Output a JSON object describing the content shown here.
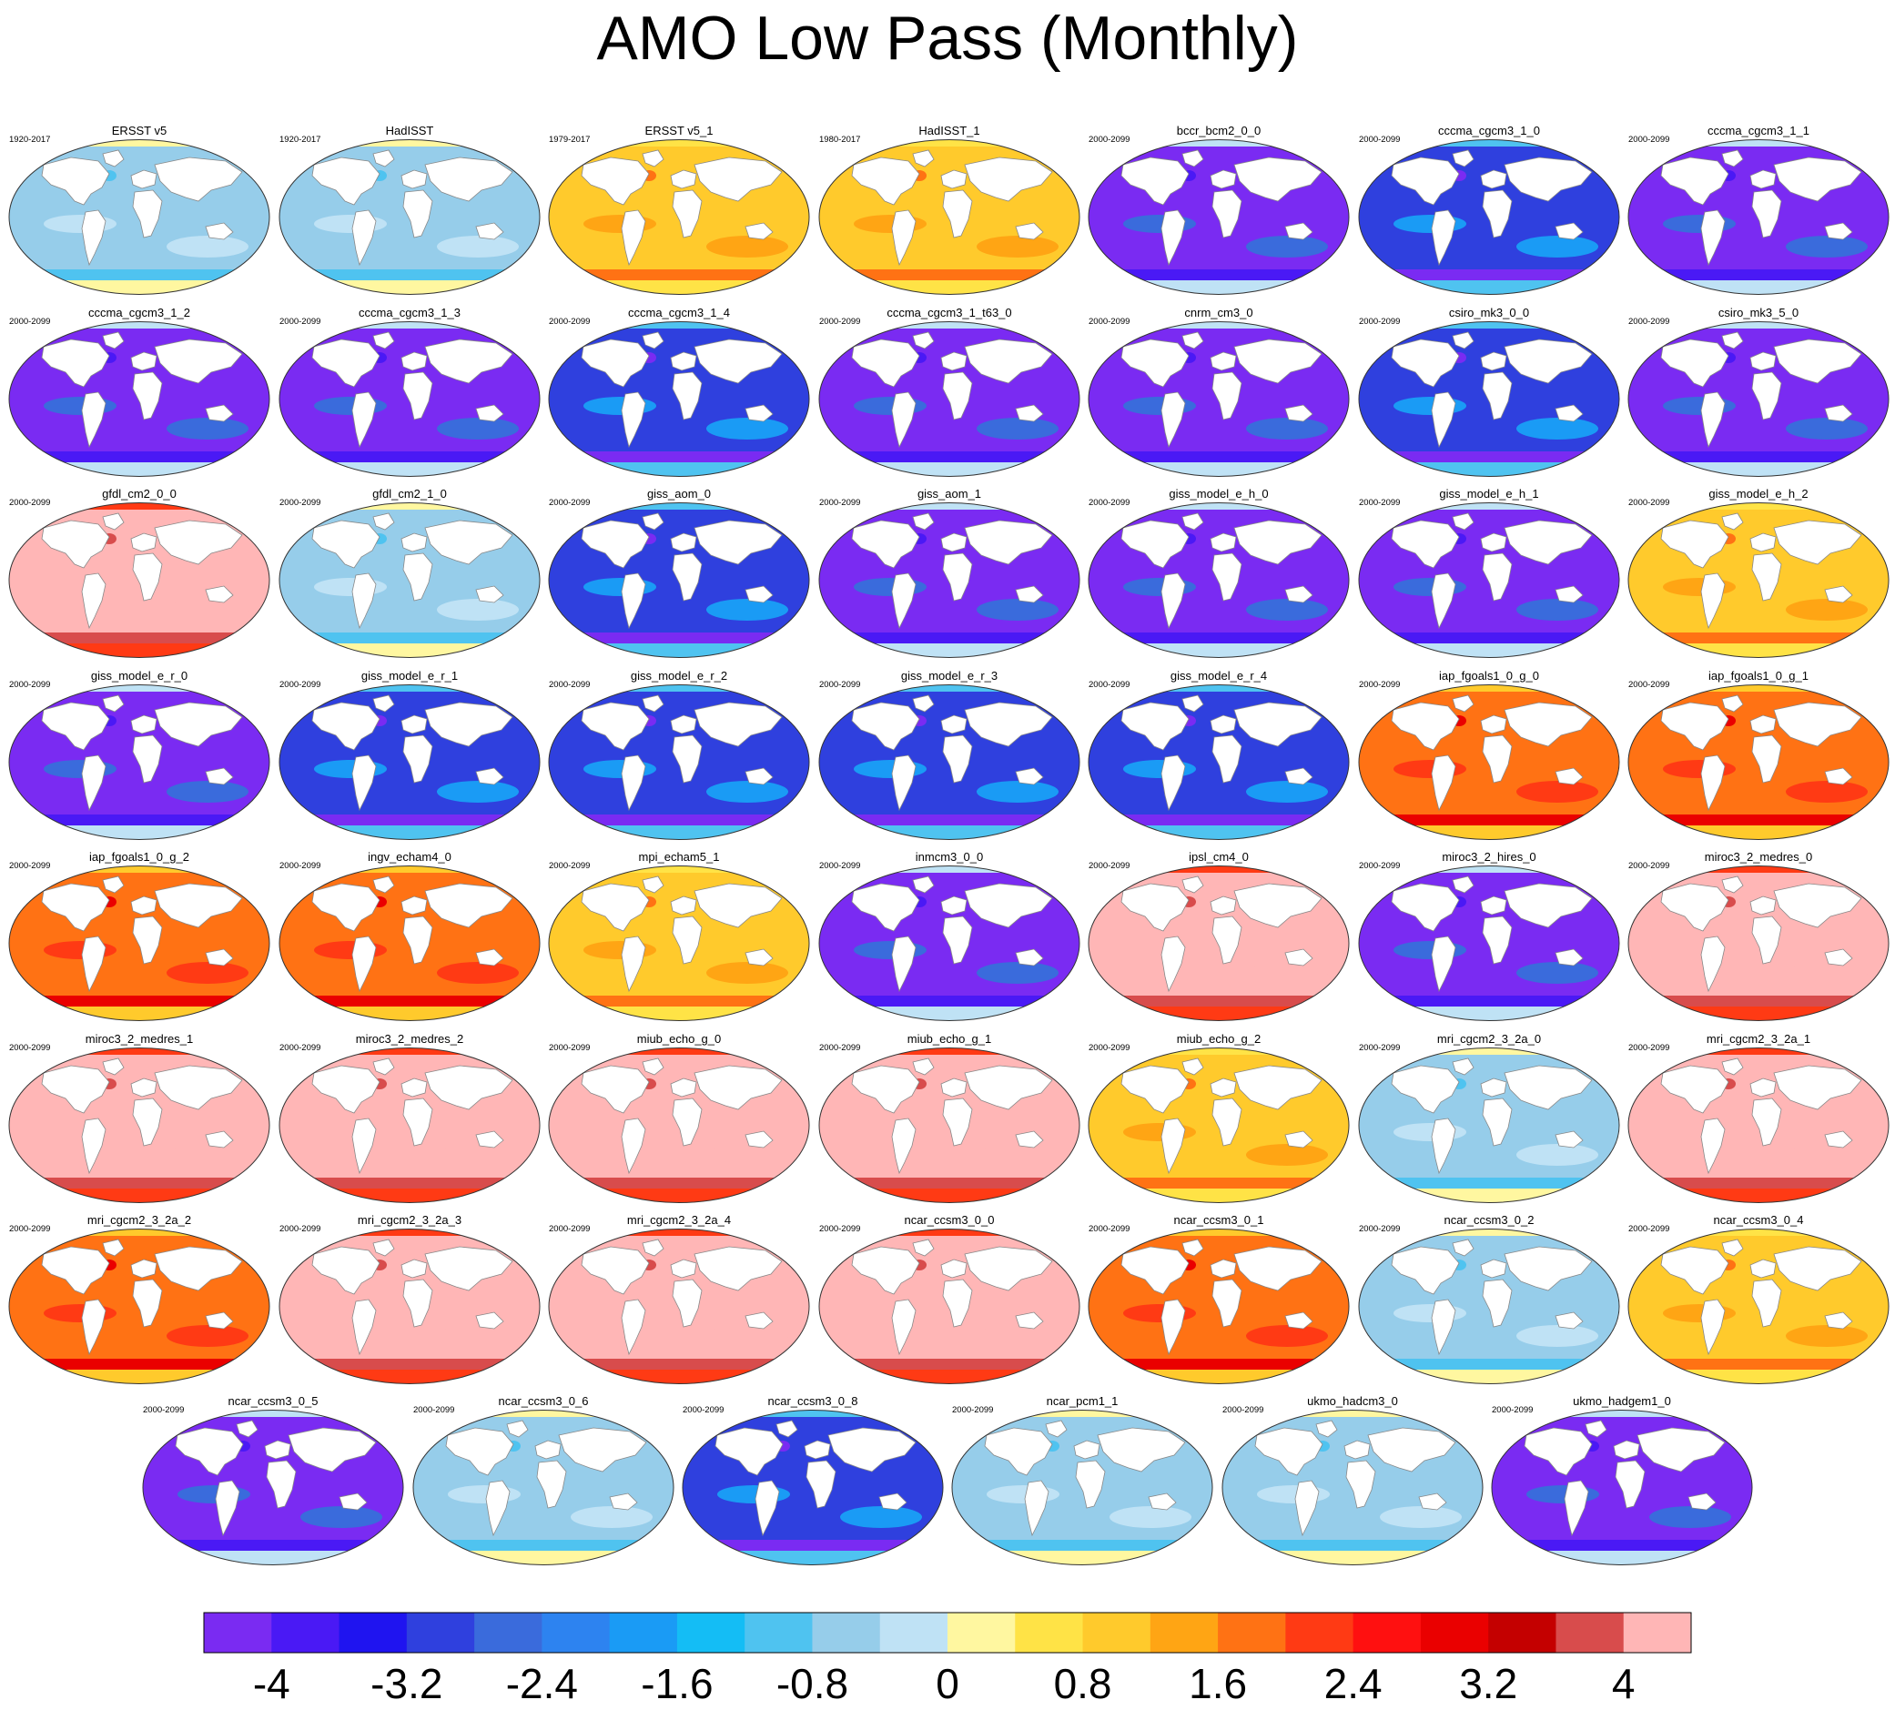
{
  "title": "AMO Low Pass (Monthly)",
  "colorbar": {
    "colors": [
      "#7a2bf2",
      "#4a19f5",
      "#1f14f0",
      "#2f40de",
      "#3a6bdc",
      "#2d83f0",
      "#1a9bf5",
      "#14bdf5",
      "#4fc3f0",
      "#96cdea",
      "#bfe2f5",
      "#fff7a0",
      "#ffe346",
      "#ffca2c",
      "#ffa514",
      "#ff7214",
      "#ff3a14",
      "#ff1010",
      "#ea0000",
      "#c40000",
      "#d84c4c",
      "#ffb6b6"
    ],
    "tick_labels": [
      "-4",
      "-3.2",
      "-2.4",
      "-1.6",
      "-0.8",
      "0",
      "0.8",
      "1.6",
      "2.4",
      "3.2",
      "4"
    ]
  },
  "panels": [
    {
      "name": "ERSST v5",
      "period": "1920-2017",
      "theme": "light"
    },
    {
      "name": "HadISST",
      "period": "1920-2017",
      "theme": "light"
    },
    {
      "name": "ERSST v5_1",
      "period": "1979-2017",
      "theme": "warm"
    },
    {
      "name": "HadISST_1",
      "period": "1980-2017",
      "theme": "warm"
    },
    {
      "name": "bccr_bcm2_0_0",
      "period": "2000-2099",
      "theme": "violet"
    },
    {
      "name": "cccma_cgcm3_1_0",
      "period": "2000-2099",
      "theme": "blue"
    },
    {
      "name": "cccma_cgcm3_1_1",
      "period": "2000-2099",
      "theme": "violet"
    },
    {
      "name": "cccma_cgcm3_1_2",
      "period": "2000-2099",
      "theme": "violet"
    },
    {
      "name": "cccma_cgcm3_1_3",
      "period": "2000-2099",
      "theme": "violet"
    },
    {
      "name": "cccma_cgcm3_1_4",
      "period": "2000-2099",
      "theme": "blue"
    },
    {
      "name": "cccma_cgcm3_1_t63_0",
      "period": "2000-2099",
      "theme": "violet"
    },
    {
      "name": "cnrm_cm3_0",
      "period": "2000-2099",
      "theme": "violet"
    },
    {
      "name": "csiro_mk3_0_0",
      "period": "2000-2099",
      "theme": "blue"
    },
    {
      "name": "csiro_mk3_5_0",
      "period": "2000-2099",
      "theme": "violet"
    },
    {
      "name": "gfdl_cm2_0_0",
      "period": "2000-2099",
      "theme": "pink"
    },
    {
      "name": "gfdl_cm2_1_0",
      "period": "2000-2099",
      "theme": "light"
    },
    {
      "name": "giss_aom_0",
      "period": "2000-2099",
      "theme": "blue"
    },
    {
      "name": "giss_aom_1",
      "period": "2000-2099",
      "theme": "violet"
    },
    {
      "name": "giss_model_e_h_0",
      "period": "2000-2099",
      "theme": "violet"
    },
    {
      "name": "giss_model_e_h_1",
      "period": "2000-2099",
      "theme": "violet"
    },
    {
      "name": "giss_model_e_h_2",
      "period": "2000-2099",
      "theme": "warm"
    },
    {
      "name": "giss_model_e_r_0",
      "period": "2000-2099",
      "theme": "violet"
    },
    {
      "name": "giss_model_e_r_1",
      "period": "2000-2099",
      "theme": "blue"
    },
    {
      "name": "giss_model_e_r_2",
      "period": "2000-2099",
      "theme": "blue"
    },
    {
      "name": "giss_model_e_r_3",
      "period": "2000-2099",
      "theme": "blue"
    },
    {
      "name": "giss_model_e_r_4",
      "period": "2000-2099",
      "theme": "blue"
    },
    {
      "name": "iap_fgoals1_0_g_0",
      "period": "2000-2099",
      "theme": "hot"
    },
    {
      "name": "iap_fgoals1_0_g_1",
      "period": "2000-2099",
      "theme": "hot"
    },
    {
      "name": "iap_fgoals1_0_g_2",
      "period": "2000-2099",
      "theme": "hot"
    },
    {
      "name": "ingv_echam4_0",
      "period": "2000-2099",
      "theme": "hot"
    },
    {
      "name": "mpi_echam5_1",
      "period": "2000-2099",
      "theme": "warm"
    },
    {
      "name": "inmcm3_0_0",
      "period": "2000-2099",
      "theme": "violet"
    },
    {
      "name": "ipsl_cm4_0",
      "period": "2000-2099",
      "theme": "pink"
    },
    {
      "name": "miroc3_2_hires_0",
      "period": "2000-2099",
      "theme": "violet"
    },
    {
      "name": "miroc3_2_medres_0",
      "period": "2000-2099",
      "theme": "pink"
    },
    {
      "name": "miroc3_2_medres_1",
      "period": "2000-2099",
      "theme": "pink"
    },
    {
      "name": "miroc3_2_medres_2",
      "period": "2000-2099",
      "theme": "pink"
    },
    {
      "name": "miub_echo_g_0",
      "period": "2000-2099",
      "theme": "pink"
    },
    {
      "name": "miub_echo_g_1",
      "period": "2000-2099",
      "theme": "pink"
    },
    {
      "name": "miub_echo_g_2",
      "period": "2000-2099",
      "theme": "warm"
    },
    {
      "name": "mri_cgcm2_3_2a_0",
      "period": "2000-2099",
      "theme": "light"
    },
    {
      "name": "mri_cgcm2_3_2a_1",
      "period": "2000-2099",
      "theme": "pink"
    },
    {
      "name": "mri_cgcm2_3_2a_2",
      "period": "2000-2099",
      "theme": "hot"
    },
    {
      "name": "mri_cgcm2_3_2a_3",
      "period": "2000-2099",
      "theme": "pink"
    },
    {
      "name": "mri_cgcm2_3_2a_4",
      "period": "2000-2099",
      "theme": "pink"
    },
    {
      "name": "ncar_ccsm3_0_0",
      "period": "2000-2099",
      "theme": "pink"
    },
    {
      "name": "ncar_ccsm3_0_1",
      "period": "2000-2099",
      "theme": "hot"
    },
    {
      "name": "ncar_ccsm3_0_2",
      "period": "2000-2099",
      "theme": "light"
    },
    {
      "name": "ncar_ccsm3_0_4",
      "period": "2000-2099",
      "theme": "warm"
    },
    {
      "name": "ncar_ccsm3_0_5",
      "period": "2000-2099",
      "theme": "violet"
    },
    {
      "name": "ncar_ccsm3_0_6",
      "period": "2000-2099",
      "theme": "light"
    },
    {
      "name": "ncar_ccsm3_0_8",
      "period": "2000-2099",
      "theme": "blue"
    },
    {
      "name": "ncar_pcm1_1",
      "period": "2000-2099",
      "theme": "light"
    },
    {
      "name": "ukmo_hadcm3_0",
      "period": "2000-2099",
      "theme": "light"
    },
    {
      "name": "ukmo_hadgem1_0",
      "period": "2000-2099",
      "theme": "violet"
    }
  ],
  "chart_data": {
    "type": "heatmap",
    "title": "AMO Low Pass (Monthly)",
    "colorbar_ticks": [
      -4,
      -3.2,
      -2.4,
      -1.6,
      -0.8,
      0,
      0.8,
      1.6,
      2.4,
      3.2,
      4
    ],
    "colorbar_range": [
      -4.4,
      4.4
    ],
    "panel_count": 55
  }
}
